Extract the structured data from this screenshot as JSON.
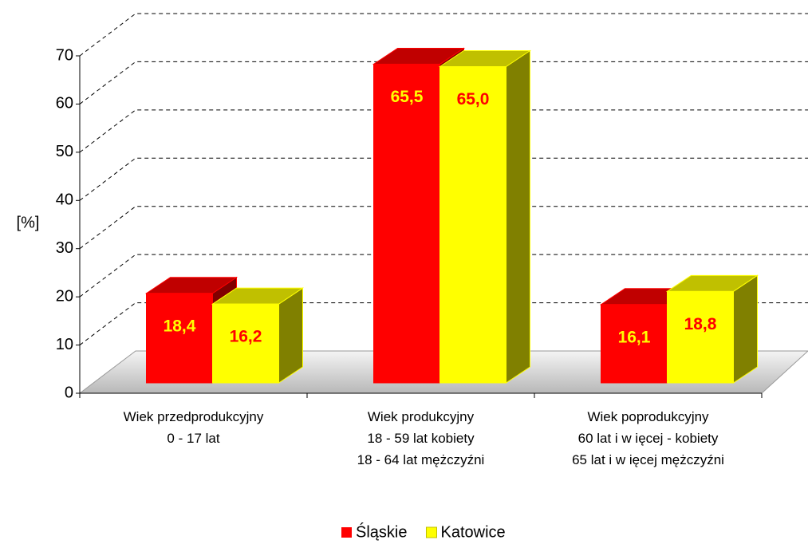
{
  "chart_data": {
    "type": "bar3d",
    "y_label": "[%]",
    "categories": [
      "Wiek przedprodukcyjny\n0 - 17 lat",
      "Wiek produkcyjny\n18 - 59 lat kobiety\n18 - 64 lat mężczyźni",
      "Wiek poprodukcyjny\n60 lat i w ięcej - kobiety\n65 lat i w ięcej mężczyźni"
    ],
    "series": [
      {
        "name": "Śląskie",
        "color": "#ff0000",
        "top_color": "#c00000",
        "side_color": "#800000",
        "values": [
          18.4,
          65.5,
          16.1
        ],
        "value_labels": [
          "18,4",
          "65,5",
          "16,1"
        ]
      },
      {
        "name": "Katowice",
        "color": "#ffff00",
        "top_color": "#c0c000",
        "side_color": "#808000",
        "values": [
          16.2,
          65.0,
          18.8
        ],
        "value_labels": [
          "16,2",
          "65,0",
          "18,8"
        ]
      }
    ],
    "ylim": [
      0,
      70
    ],
    "yticks": [
      0,
      10,
      20,
      30,
      40,
      50,
      60,
      70
    ],
    "grid": true,
    "legend": "bottom"
  }
}
